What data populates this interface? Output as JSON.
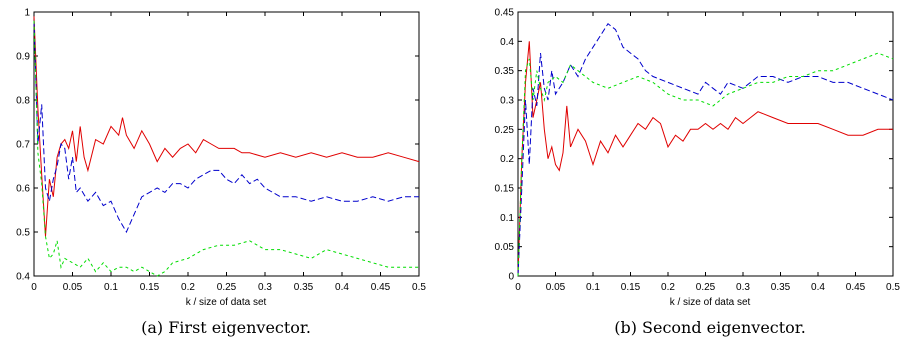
{
  "chart_data": [
    {
      "type": "line",
      "caption": "(a) First eigenvector.",
      "xlabel": "k / size of data set",
      "ylabel": "",
      "xlim": [
        0,
        0.5
      ],
      "ylim": [
        0.4,
        1.0
      ],
      "xticks": [
        "0",
        "0.05",
        "0.1",
        "0.15",
        "0.2",
        "0.25",
        "0.3",
        "0.35",
        "0.4",
        "0.45",
        "0.5"
      ],
      "yticks": [
        "0.4",
        "0.5",
        "0.6",
        "0.7",
        "0.8",
        "0.9",
        "1"
      ],
      "grid": false,
      "series": [
        {
          "color": "#e00000",
          "dash": "solid",
          "x": [
            0,
            0.005,
            0.01,
            0.015,
            0.02,
            0.025,
            0.03,
            0.035,
            0.04,
            0.045,
            0.05,
            0.055,
            0.06,
            0.065,
            0.07,
            0.08,
            0.09,
            0.1,
            0.11,
            0.115,
            0.12,
            0.13,
            0.14,
            0.15,
            0.16,
            0.17,
            0.18,
            0.19,
            0.2,
            0.21,
            0.22,
            0.23,
            0.24,
            0.25,
            0.26,
            0.27,
            0.28,
            0.3,
            0.32,
            0.34,
            0.36,
            0.38,
            0.4,
            0.42,
            0.44,
            0.46,
            0.48,
            0.5
          ],
          "y": [
            0.99,
            0.78,
            0.63,
            0.49,
            0.62,
            0.58,
            0.67,
            0.7,
            0.71,
            0.69,
            0.73,
            0.66,
            0.74,
            0.67,
            0.64,
            0.71,
            0.7,
            0.74,
            0.72,
            0.76,
            0.72,
            0.69,
            0.73,
            0.7,
            0.66,
            0.69,
            0.67,
            0.69,
            0.7,
            0.68,
            0.71,
            0.7,
            0.69,
            0.69,
            0.69,
            0.68,
            0.68,
            0.67,
            0.68,
            0.67,
            0.68,
            0.67,
            0.68,
            0.67,
            0.67,
            0.68,
            0.67,
            0.66
          ]
        },
        {
          "color": "#0000cc",
          "dash": "6,3",
          "x": [
            0,
            0.005,
            0.01,
            0.015,
            0.02,
            0.025,
            0.03,
            0.035,
            0.04,
            0.045,
            0.05,
            0.055,
            0.06,
            0.07,
            0.08,
            0.09,
            0.1,
            0.11,
            0.12,
            0.13,
            0.14,
            0.15,
            0.16,
            0.17,
            0.18,
            0.19,
            0.2,
            0.21,
            0.22,
            0.23,
            0.24,
            0.25,
            0.26,
            0.27,
            0.28,
            0.29,
            0.3,
            0.32,
            0.34,
            0.36,
            0.38,
            0.4,
            0.42,
            0.44,
            0.46,
            0.48,
            0.5
          ],
          "y": [
            0.98,
            0.7,
            0.79,
            0.6,
            0.57,
            0.62,
            0.65,
            0.7,
            0.69,
            0.62,
            0.67,
            0.59,
            0.6,
            0.57,
            0.59,
            0.56,
            0.57,
            0.53,
            0.5,
            0.54,
            0.58,
            0.59,
            0.6,
            0.59,
            0.61,
            0.61,
            0.6,
            0.62,
            0.63,
            0.64,
            0.64,
            0.62,
            0.61,
            0.63,
            0.61,
            0.62,
            0.6,
            0.58,
            0.58,
            0.57,
            0.58,
            0.57,
            0.57,
            0.58,
            0.57,
            0.58,
            0.58
          ]
        },
        {
          "color": "#00dd00",
          "dash": "3,3",
          "x": [
            0,
            0.005,
            0.01,
            0.015,
            0.02,
            0.025,
            0.03,
            0.035,
            0.04,
            0.05,
            0.06,
            0.07,
            0.08,
            0.09,
            0.1,
            0.11,
            0.12,
            0.13,
            0.14,
            0.15,
            0.16,
            0.17,
            0.18,
            0.2,
            0.22,
            0.24,
            0.26,
            0.28,
            0.3,
            0.32,
            0.34,
            0.36,
            0.38,
            0.4,
            0.42,
            0.44,
            0.46,
            0.48,
            0.5
          ],
          "y": [
            0.98,
            0.68,
            0.61,
            0.49,
            0.44,
            0.45,
            0.48,
            0.42,
            0.44,
            0.43,
            0.42,
            0.44,
            0.41,
            0.43,
            0.41,
            0.42,
            0.42,
            0.41,
            0.42,
            0.41,
            0.4,
            0.41,
            0.43,
            0.44,
            0.46,
            0.47,
            0.47,
            0.48,
            0.46,
            0.46,
            0.45,
            0.44,
            0.46,
            0.45,
            0.44,
            0.43,
            0.42,
            0.42,
            0.42
          ]
        }
      ]
    },
    {
      "type": "line",
      "caption": "(b) Second eigenvector.",
      "xlabel": "k / size of data set",
      "ylabel": "",
      "xlim": [
        0,
        0.5
      ],
      "ylim": [
        0,
        0.45
      ],
      "xticks": [
        "0",
        "0.05",
        "0.1",
        "0.15",
        "0.2",
        "0.25",
        "0.3",
        "0.35",
        "0.4",
        "0.45",
        "0.5"
      ],
      "yticks": [
        "0",
        "0.05",
        "0.1",
        "0.15",
        "0.2",
        "0.25",
        "0.3",
        "0.35",
        "0.4",
        "0.45"
      ],
      "grid": false,
      "series": [
        {
          "color": "#e00000",
          "dash": "solid",
          "x": [
            0,
            0.005,
            0.01,
            0.015,
            0.02,
            0.025,
            0.03,
            0.035,
            0.04,
            0.045,
            0.05,
            0.055,
            0.06,
            0.065,
            0.07,
            0.08,
            0.09,
            0.1,
            0.11,
            0.12,
            0.13,
            0.14,
            0.15,
            0.16,
            0.17,
            0.18,
            0.19,
            0.2,
            0.21,
            0.22,
            0.23,
            0.24,
            0.25,
            0.26,
            0.27,
            0.28,
            0.29,
            0.3,
            0.31,
            0.32,
            0.34,
            0.36,
            0.38,
            0.4,
            0.42,
            0.44,
            0.46,
            0.48,
            0.5
          ],
          "y": [
            0.0,
            0.2,
            0.33,
            0.4,
            0.27,
            0.3,
            0.33,
            0.25,
            0.2,
            0.22,
            0.19,
            0.18,
            0.21,
            0.29,
            0.22,
            0.25,
            0.23,
            0.19,
            0.23,
            0.21,
            0.24,
            0.22,
            0.24,
            0.26,
            0.25,
            0.27,
            0.26,
            0.22,
            0.24,
            0.23,
            0.25,
            0.25,
            0.26,
            0.25,
            0.26,
            0.25,
            0.27,
            0.26,
            0.27,
            0.28,
            0.27,
            0.26,
            0.26,
            0.26,
            0.25,
            0.24,
            0.24,
            0.25,
            0.25
          ]
        },
        {
          "color": "#0000cc",
          "dash": "6,3",
          "x": [
            0,
            0.005,
            0.01,
            0.015,
            0.02,
            0.025,
            0.03,
            0.035,
            0.04,
            0.045,
            0.05,
            0.06,
            0.07,
            0.08,
            0.09,
            0.1,
            0.11,
            0.12,
            0.13,
            0.14,
            0.15,
            0.16,
            0.17,
            0.18,
            0.2,
            0.22,
            0.24,
            0.25,
            0.26,
            0.27,
            0.28,
            0.3,
            0.32,
            0.34,
            0.36,
            0.38,
            0.4,
            0.42,
            0.44,
            0.46,
            0.48,
            0.5
          ],
          "y": [
            0.0,
            0.15,
            0.3,
            0.19,
            0.32,
            0.29,
            0.38,
            0.32,
            0.3,
            0.35,
            0.31,
            0.33,
            0.36,
            0.34,
            0.37,
            0.39,
            0.41,
            0.43,
            0.42,
            0.39,
            0.38,
            0.37,
            0.35,
            0.34,
            0.33,
            0.32,
            0.31,
            0.33,
            0.32,
            0.31,
            0.33,
            0.32,
            0.34,
            0.34,
            0.33,
            0.34,
            0.34,
            0.33,
            0.33,
            0.32,
            0.31,
            0.3
          ]
        },
        {
          "color": "#00dd00",
          "dash": "3,3",
          "x": [
            0,
            0.005,
            0.01,
            0.015,
            0.02,
            0.025,
            0.03,
            0.035,
            0.04,
            0.05,
            0.06,
            0.07,
            0.08,
            0.1,
            0.12,
            0.14,
            0.16,
            0.18,
            0.2,
            0.22,
            0.24,
            0.26,
            0.28,
            0.3,
            0.32,
            0.34,
            0.36,
            0.38,
            0.4,
            0.42,
            0.44,
            0.46,
            0.48,
            0.5
          ],
          "y": [
            0.0,
            0.2,
            0.35,
            0.37,
            0.3,
            0.35,
            0.32,
            0.3,
            0.33,
            0.34,
            0.33,
            0.36,
            0.35,
            0.33,
            0.32,
            0.33,
            0.34,
            0.33,
            0.31,
            0.3,
            0.3,
            0.29,
            0.31,
            0.32,
            0.33,
            0.33,
            0.34,
            0.34,
            0.35,
            0.35,
            0.36,
            0.37,
            0.38,
            0.37
          ]
        }
      ]
    }
  ]
}
